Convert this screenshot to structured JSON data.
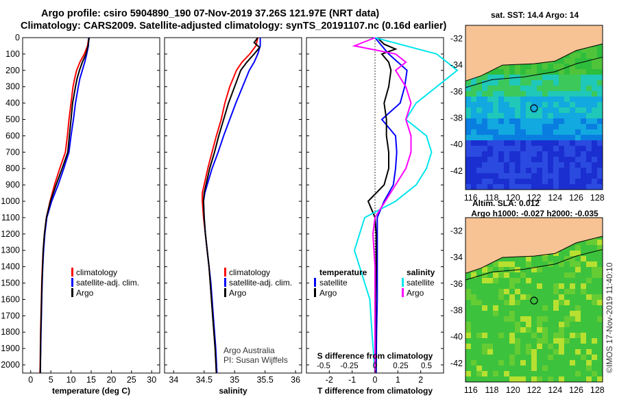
{
  "header": {
    "title": "Argo profile: csiro 5904890_190 07-Nov-2019 37.26S 121.97E (NRT data)",
    "subtitle": "Climatology: CARS2009. Satellite-adjusted climatology: synTS_20191107.nc (0.16d earlier)"
  },
  "colors": {
    "climatology": "#ff0000",
    "satellite": "#0000ff",
    "argo": "#000000",
    "s_satellite": "#00e5ee",
    "s_argo": "#ff00ff",
    "land": "#f7c394"
  },
  "depth_axis": {
    "ticks": [
      "0",
      "100",
      "200",
      "300",
      "400",
      "500",
      "600",
      "700",
      "800",
      "900",
      "1000",
      "1100",
      "1200",
      "1300",
      "1400",
      "1500",
      "1600",
      "1700",
      "1800",
      "1900",
      "2000"
    ],
    "ylim": [
      0,
      2050
    ]
  },
  "legend": {
    "climatology": "climatology",
    "satellite_adj": "satellite-adj. clim.",
    "argo": "Argo",
    "temperature": "temperature",
    "salinity": "salinity",
    "satellite": "satellite"
  },
  "credit": {
    "line1": "Argo Australia",
    "line2": "PI: Susan Wijffels",
    "stamp": "©IMOS 17-Nov-2019 11:40:10"
  },
  "maps": {
    "sst_title": "sat. SST: 14.4 Argo: 14",
    "sla_title1": "Altim. SLA: 0.012",
    "sla_title2": "Argo h1000: -0.027 h2000: -0.035",
    "lat_ticks": [
      "-32",
      "-34",
      "-36",
      "-38",
      "-40",
      "-42"
    ],
    "lon_ticks": [
      "116",
      "118",
      "120",
      "122",
      "124",
      "126",
      "128"
    ],
    "float_lon": 122,
    "float_lat": -37.26
  },
  "chart_data": [
    {
      "type": "line",
      "xlabel": "temperature (deg C)",
      "xticks": [
        "0",
        "5",
        "10",
        "15",
        "20",
        "25",
        "30"
      ],
      "xlim": [
        -2,
        32
      ],
      "ylim": [
        0,
        2050
      ],
      "series": [
        {
          "name": "climatology",
          "depth": [
            0,
            50,
            100,
            150,
            200,
            250,
            300,
            400,
            500,
            600,
            700,
            800,
            900,
            1000,
            1100,
            1200,
            1300,
            1400,
            1500,
            1600,
            1700,
            1800,
            1900,
            2000,
            2050
          ],
          "values": [
            14.4,
            14.1,
            13.3,
            12.2,
            11.4,
            10.9,
            10.5,
            10.0,
            9.5,
            9.1,
            8.6,
            7.2,
            5.9,
            4.8,
            3.9,
            3.4,
            3.1,
            2.9,
            2.75,
            2.65,
            2.55,
            2.45,
            2.4,
            2.35,
            2.3
          ]
        },
        {
          "name": "satellite-adj. clim.",
          "depth": [
            0,
            50,
            100,
            150,
            200,
            250,
            300,
            400,
            500,
            600,
            700,
            800,
            900,
            1000,
            1100,
            1200,
            1300,
            1400,
            1500,
            1600,
            1700,
            1800,
            1900,
            2000,
            2050
          ],
          "values": [
            14.4,
            14.3,
            13.9,
            13.4,
            12.8,
            12.2,
            11.8,
            11.1,
            10.6,
            10.0,
            9.5,
            8.2,
            6.8,
            5.2,
            4.0,
            3.5,
            3.2,
            3.0,
            2.85,
            2.75,
            2.65,
            2.55,
            2.48,
            2.42,
            2.4
          ]
        },
        {
          "name": "Argo",
          "depth": [
            0,
            50,
            100,
            150,
            200,
            250,
            300,
            400,
            500,
            600,
            700,
            800,
            900,
            1000,
            1100,
            1200,
            1300,
            1400,
            1500,
            1600,
            1700,
            1800,
            1900,
            2000,
            2050
          ],
          "values": [
            14.5,
            14.2,
            13.7,
            12.8,
            12.1,
            11.5,
            11.1,
            10.4,
            10.0,
            9.6,
            9.2,
            7.8,
            6.3,
            4.9,
            3.9,
            3.4,
            3.1,
            2.95,
            2.8,
            2.7,
            2.6,
            2.5,
            2.45,
            2.4,
            2.38
          ]
        }
      ]
    },
    {
      "type": "line",
      "xlabel": "salinity",
      "xticks": [
        "34",
        "34.5",
        "35",
        "35.5",
        "36"
      ],
      "xlim": [
        33.85,
        36.1
      ],
      "ylim": [
        0,
        2050
      ],
      "series": [
        {
          "name": "climatology",
          "depth": [
            0,
            50,
            100,
            150,
            200,
            300,
            400,
            500,
            600,
            700,
            800,
            900,
            950,
            1000,
            1100,
            1200,
            1300,
            1400,
            1500,
            1700,
            1900,
            2050
          ],
          "values": [
            35.38,
            35.35,
            35.25,
            35.12,
            35.03,
            34.92,
            34.84,
            34.78,
            34.7,
            34.63,
            34.56,
            34.5,
            34.47,
            34.47,
            34.49,
            34.52,
            34.55,
            34.58,
            34.6,
            34.64,
            34.68,
            34.7
          ]
        },
        {
          "name": "satellite-adj. clim.",
          "depth": [
            0,
            50,
            100,
            150,
            200,
            300,
            400,
            500,
            600,
            700,
            800,
            900,
            950,
            1000,
            1100,
            1200,
            1300,
            1400,
            1500,
            1700,
            1900,
            2050
          ],
          "values": [
            35.42,
            35.42,
            35.38,
            35.32,
            35.24,
            35.13,
            35.02,
            34.92,
            34.82,
            34.73,
            34.63,
            34.55,
            34.51,
            34.49,
            34.5,
            34.52,
            34.55,
            34.58,
            34.61,
            34.65,
            34.69,
            34.71
          ]
        },
        {
          "name": "Argo",
          "depth": [
            0,
            30,
            60,
            100,
            150,
            200,
            300,
            400,
            500,
            600,
            700,
            800,
            900,
            950,
            1000,
            1100,
            1200,
            1300,
            1400,
            1500,
            1700,
            1900,
            2050
          ],
          "values": [
            35.38,
            35.32,
            35.41,
            35.32,
            35.2,
            35.1,
            35.0,
            34.9,
            34.82,
            34.74,
            34.67,
            34.59,
            34.53,
            34.5,
            34.49,
            34.5,
            34.52,
            34.55,
            34.58,
            34.6,
            34.64,
            34.68,
            34.7
          ]
        }
      ]
    },
    {
      "type": "line",
      "xlabel": "T difference from climatology",
      "xlabel_top": "S difference from climatology",
      "xticks": [
        "-2",
        "-1",
        "0",
        "1",
        "2"
      ],
      "xticks_top": [
        "-0.5",
        "-0.25",
        "0",
        "0.25",
        "0.5"
      ],
      "xlim": [
        -3,
        3
      ],
      "ylim": [
        0,
        2050
      ],
      "series": [
        {
          "name": "temperature satellite",
          "depth": [
            0,
            100,
            200,
            300,
            400,
            500,
            600,
            700,
            800,
            900,
            1000,
            1100,
            1200,
            1300,
            1400,
            1500,
            1600,
            1800,
            2050
          ],
          "values": [
            0.0,
            0.6,
            1.4,
            1.3,
            1.1,
            0.3,
            0.9,
            0.95,
            0.9,
            0.8,
            0.4,
            0.1,
            0.1,
            0.1,
            0.1,
            0.1,
            0.1,
            0.07,
            0.05
          ]
        },
        {
          "name": "temperature Argo",
          "depth": [
            0,
            40,
            70,
            100,
            150,
            200,
            300,
            400,
            500,
            600,
            700,
            800,
            900,
            1000,
            1100,
            1200,
            1400,
            1600,
            1800,
            2050
          ],
          "values": [
            0.1,
            0.4,
            0.9,
            0.3,
            0.6,
            0.7,
            0.6,
            0.4,
            0.5,
            0.5,
            0.6,
            0.6,
            0.4,
            -0.3,
            0.0,
            0.05,
            0.05,
            0.03,
            0.02,
            0.02
          ]
        },
        {
          "name": "salinity satellite",
          "depth": [
            0,
            100,
            200,
            300,
            400,
            500,
            600,
            700,
            800,
            900,
            1000,
            1100,
            1200,
            1300,
            1400,
            1500,
            1600,
            1800,
            2050
          ],
          "values": [
            0.0,
            0.6,
            0.8,
            0.6,
            0.4,
            0.3,
            0.5,
            0.55,
            0.5,
            0.4,
            0.2,
            -0.1,
            -0.15,
            -0.2,
            -0.15,
            -0.1,
            -0.05,
            -0.03,
            0.0
          ]
        },
        {
          "name": "salinity Argo",
          "depth": [
            0,
            50,
            100,
            150,
            200,
            300,
            400,
            500,
            600,
            700,
            800,
            900,
            1000,
            1100,
            1200,
            1400,
            1600,
            1800,
            2050
          ],
          "values": [
            0.0,
            -0.2,
            0.2,
            0.3,
            0.2,
            0.3,
            0.35,
            0.3,
            0.35,
            0.35,
            0.3,
            0.2,
            0.1,
            0.0,
            -0.02,
            0.0,
            0.0,
            0.0,
            0.0
          ]
        }
      ]
    }
  ]
}
